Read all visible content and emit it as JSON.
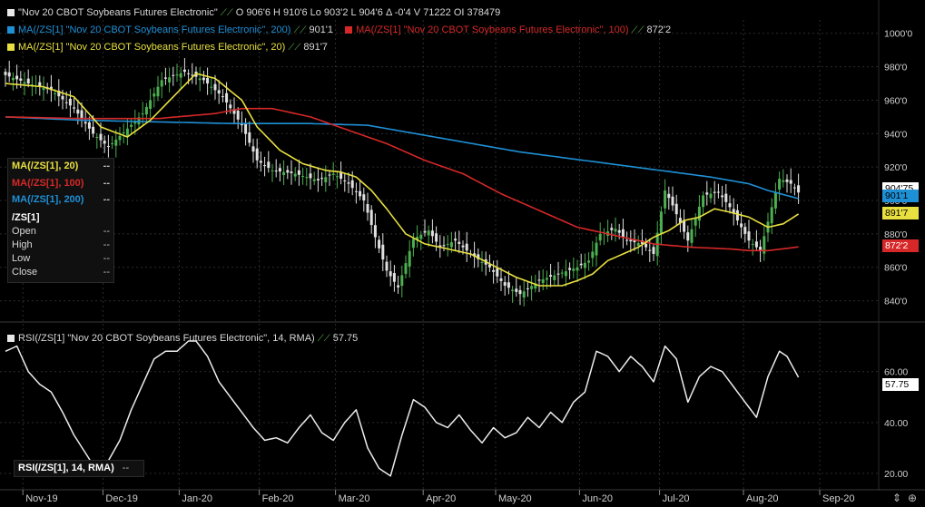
{
  "header": {
    "title": "\"Nov 20 CBOT Soybeans Futures Electronic\"",
    "ohlc": "O 906'6  H 910'6  Lo 903'2  L 904'6  Δ -0'4  V 71222  OI 378479",
    "ma200_label": "MA(/ZS[1] \"Nov 20 CBOT Soybeans Futures Electronic\", 200)",
    "ma200_value": "901'1",
    "ma100_label": "MA(/ZS[1] \"Nov 20 CBOT Soybeans Futures Electronic\", 100)",
    "ma100_value": "872'2",
    "ma20_label": "MA(/ZS[1] \"Nov 20 CBOT Soybeans Futures Electronic\", 20)",
    "ma20_value": "891'7"
  },
  "rsi_header": {
    "label": "RSI(/ZS[1] \"Nov 20 CBOT Soybeans Futures Electronic\", 14, RMA)",
    "value": "57.75"
  },
  "data_legend": {
    "ma20": "MA(/ZS[1], 20)",
    "ma100": "MA(/ZS[1], 100)",
    "ma200": "MA(/ZS[1], 200)",
    "symbol": "/ZS[1]",
    "open": "Open",
    "high": "High",
    "low": "Low",
    "close": "Close",
    "placeholder": "--"
  },
  "rsi_legend": {
    "label": "RSI(/ZS[1], 14, RMA)",
    "value": "--"
  },
  "price_tags": {
    "last": "904'75",
    "ma200": "901'1",
    "ma20": "891'7",
    "ma100": "872'2",
    "rsi": "57.75"
  },
  "colors": {
    "up": "#4caf50",
    "down": "#e0e0e0",
    "ma20": "#e8e040",
    "ma100": "#d62828",
    "ma200": "#1e90d6",
    "rsi": "#ececec",
    "grid": "#2c2c2c",
    "bg": "#000000"
  },
  "chart_data": [
    {
      "type": "candlestick",
      "title": "\"Nov 20 CBOT Soybeans Futures Electronic\"",
      "ylim": [
        830,
        1008
      ],
      "yticks": [
        840,
        860,
        880,
        900,
        920,
        940,
        960,
        980,
        1000
      ],
      "ytick_labels": [
        "840'0",
        "860'0",
        "880'0",
        "900'0",
        "920'0",
        "940'0",
        "960'0",
        "980'0",
        "1000'0"
      ],
      "x_months": [
        "Nov-19",
        "Dec-19",
        "Jan-20",
        "Feb-20",
        "Mar-20",
        "Apr-20",
        "May-20",
        "Jun-20",
        "Jul-20",
        "Aug-20",
        "Sep-20"
      ],
      "x_month_bar_index": [
        6,
        27,
        47,
        68,
        88,
        111,
        130,
        152,
        173,
        195,
        215
      ],
      "n_bars": 209,
      "close_anchors": [
        [
          0,
          975
        ],
        [
          6,
          970
        ],
        [
          12,
          966
        ],
        [
          18,
          955
        ],
        [
          23,
          940
        ],
        [
          27,
          932
        ],
        [
          32,
          943
        ],
        [
          36,
          952
        ],
        [
          41,
          972
        ],
        [
          47,
          977
        ],
        [
          52,
          972
        ],
        [
          57,
          962
        ],
        [
          62,
          945
        ],
        [
          66,
          924
        ],
        [
          70,
          918
        ],
        [
          76,
          916
        ],
        [
          82,
          912
        ],
        [
          86,
          916
        ],
        [
          90,
          910
        ],
        [
          94,
          900
        ],
        [
          97,
          878
        ],
        [
          100,
          858
        ],
        [
          103,
          848
        ],
        [
          107,
          877
        ],
        [
          111,
          882
        ],
        [
          114,
          872
        ],
        [
          118,
          876
        ],
        [
          122,
          868
        ],
        [
          127,
          860
        ],
        [
          131,
          849
        ],
        [
          135,
          844
        ],
        [
          140,
          852
        ],
        [
          145,
          856
        ],
        [
          150,
          860
        ],
        [
          153,
          864
        ],
        [
          156,
          880
        ],
        [
          160,
          883
        ],
        [
          163,
          876
        ],
        [
          167,
          874
        ],
        [
          170,
          868
        ],
        [
          173,
          906
        ],
        [
          175,
          897
        ],
        [
          179,
          876
        ],
        [
          183,
          903
        ],
        [
          187,
          905
        ],
        [
          190,
          896
        ],
        [
          195,
          876
        ],
        [
          198,
          870
        ],
        [
          201,
          896
        ],
        [
          203,
          913
        ],
        [
          206,
          910
        ],
        [
          208,
          904.75
        ]
      ],
      "series": [
        {
          "name": "MA(/ZS[1], 20)",
          "anchors": [
            [
              0,
              970
            ],
            [
              10,
              968
            ],
            [
              18,
              962
            ],
            [
              25,
              944
            ],
            [
              32,
              938
            ],
            [
              38,
              948
            ],
            [
              44,
              962
            ],
            [
              50,
              976
            ],
            [
              55,
              973
            ],
            [
              62,
              960
            ],
            [
              66,
              944
            ],
            [
              72,
              930
            ],
            [
              78,
              922
            ],
            [
              84,
              918
            ],
            [
              88,
              917
            ],
            [
              92,
              914
            ],
            [
              96,
              906
            ],
            [
              100,
              895
            ],
            [
              105,
              880
            ],
            [
              110,
              874
            ],
            [
              116,
              871
            ],
            [
              122,
              868
            ],
            [
              128,
              861
            ],
            [
              134,
              854
            ],
            [
              140,
              849
            ],
            [
              146,
              849
            ],
            [
              150,
              852
            ],
            [
              154,
              856
            ],
            [
              158,
              864
            ],
            [
              162,
              868
            ],
            [
              166,
              872
            ],
            [
              170,
              878
            ],
            [
              174,
              882
            ],
            [
              178,
              888
            ],
            [
              182,
              890
            ],
            [
              186,
              895
            ],
            [
              190,
              893
            ],
            [
              195,
              890
            ],
            [
              200,
              884
            ],
            [
              204,
              886
            ],
            [
              208,
              891.9
            ]
          ]
        },
        {
          "name": "MA(/ZS[1], 100)",
          "anchors": [
            [
              0,
              950
            ],
            [
              20,
              949
            ],
            [
              40,
              949
            ],
            [
              55,
              952
            ],
            [
              62,
              955
            ],
            [
              70,
              955
            ],
            [
              80,
              950
            ],
            [
              90,
              942
            ],
            [
              100,
              934
            ],
            [
              110,
              924
            ],
            [
              120,
              916
            ],
            [
              130,
              904
            ],
            [
              140,
              894
            ],
            [
              150,
              884
            ],
            [
              160,
              879
            ],
            [
              170,
              874
            ],
            [
              180,
              872
            ],
            [
              190,
              871
            ],
            [
              195,
              870
            ],
            [
              200,
              870
            ],
            [
              208,
              872.2
            ]
          ]
        },
        {
          "name": "MA(/ZS[1], 200)",
          "anchors": [
            [
              0,
              950
            ],
            [
              20,
              948
            ],
            [
              40,
              947
            ],
            [
              60,
              946
            ],
            [
              80,
              946
            ],
            [
              95,
              945
            ],
            [
              105,
              941
            ],
            [
              115,
              937
            ],
            [
              125,
              933
            ],
            [
              135,
              929
            ],
            [
              145,
              926
            ],
            [
              155,
              923
            ],
            [
              165,
              920
            ],
            [
              175,
              917
            ],
            [
              185,
              914
            ],
            [
              195,
              910
            ],
            [
              200,
              906
            ],
            [
              208,
              901.1
            ]
          ]
        }
      ]
    },
    {
      "type": "line",
      "title": "RSI(/ZS[1] \"Nov 20 CBOT Soybeans Futures Electronic\", 14, RMA)",
      "ylim": [
        15,
        77
      ],
      "yticks": [
        20,
        40,
        60
      ],
      "ytick_labels": [
        "20.00",
        "40.00",
        "60.00"
      ],
      "series": [
        {
          "name": "RSI(/ZS[1], 14, RMA)",
          "anchors": [
            [
              0,
              68
            ],
            [
              3,
              70
            ],
            [
              6,
              60
            ],
            [
              9,
              55
            ],
            [
              12,
              52
            ],
            [
              15,
              44
            ],
            [
              18,
              35
            ],
            [
              21,
              28
            ],
            [
              24,
              21
            ],
            [
              27,
              25
            ],
            [
              30,
              33
            ],
            [
              33,
              45
            ],
            [
              36,
              55
            ],
            [
              39,
              65
            ],
            [
              42,
              68
            ],
            [
              45,
              68
            ],
            [
              48,
              72
            ],
            [
              50,
              72
            ],
            [
              53,
              66
            ],
            [
              56,
              56
            ],
            [
              59,
              50
            ],
            [
              62,
              44
            ],
            [
              65,
              38
            ],
            [
              68,
              33
            ],
            [
              71,
              34
            ],
            [
              74,
              32
            ],
            [
              77,
              38
            ],
            [
              80,
              43
            ],
            [
              83,
              36
            ],
            [
              86,
              33
            ],
            [
              89,
              40
            ],
            [
              92,
              45
            ],
            [
              95,
              30
            ],
            [
              98,
              22
            ],
            [
              101,
              19
            ],
            [
              104,
              35
            ],
            [
              107,
              49
            ],
            [
              110,
              46
            ],
            [
              113,
              40
            ],
            [
              116,
              38
            ],
            [
              119,
              43
            ],
            [
              122,
              37
            ],
            [
              125,
              32
            ],
            [
              128,
              38
            ],
            [
              131,
              34
            ],
            [
              134,
              36
            ],
            [
              137,
              42
            ],
            [
              140,
              38
            ],
            [
              143,
              44
            ],
            [
              146,
              40
            ],
            [
              149,
              48
            ],
            [
              152,
              52
            ],
            [
              155,
              68
            ],
            [
              158,
              66
            ],
            [
              161,
              60
            ],
            [
              164,
              66
            ],
            [
              167,
              62
            ],
            [
              170,
              56
            ],
            [
              173,
              70
            ],
            [
              176,
              65
            ],
            [
              179,
              48
            ],
            [
              182,
              58
            ],
            [
              185,
              62
            ],
            [
              188,
              60
            ],
            [
              191,
              54
            ],
            [
              194,
              48
            ],
            [
              197,
              42
            ],
            [
              200,
              58
            ],
            [
              203,
              68
            ],
            [
              205,
              66
            ],
            [
              208,
              57.75
            ]
          ]
        }
      ]
    }
  ]
}
